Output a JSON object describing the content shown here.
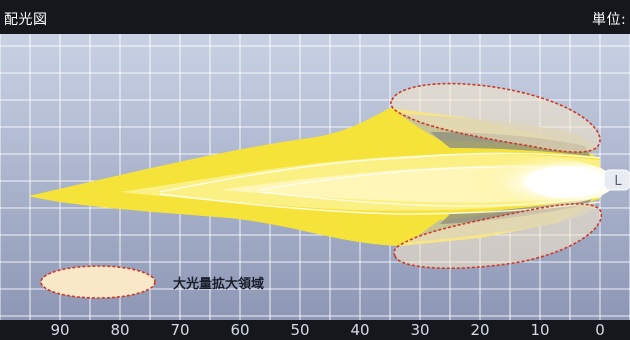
{
  "header": {
    "title": "配光図",
    "unit_label": "単位:"
  },
  "axis": {
    "x_ticks": [
      "90",
      "80",
      "70",
      "60",
      "50",
      "40",
      "30",
      "20",
      "10",
      "0"
    ]
  },
  "legend": {
    "label": "大光量拡大領域"
  },
  "light_source_label": "L",
  "colors": {
    "background": "#14171c",
    "plot_top": "#c9d2e4",
    "plot_bottom": "#8d97b5",
    "grid": "#ffffff",
    "beam_outer": "#f5e33a",
    "beam_mid": "#fbf084",
    "beam_inner": "#fffbd8",
    "beam_core": "#ffffff",
    "expanded_region_fill": "#f8e8c8",
    "expanded_region_border": "#cc3a2a",
    "gray_band_dark": "#8f907f",
    "gray_band_light": "#bdbda6"
  }
}
